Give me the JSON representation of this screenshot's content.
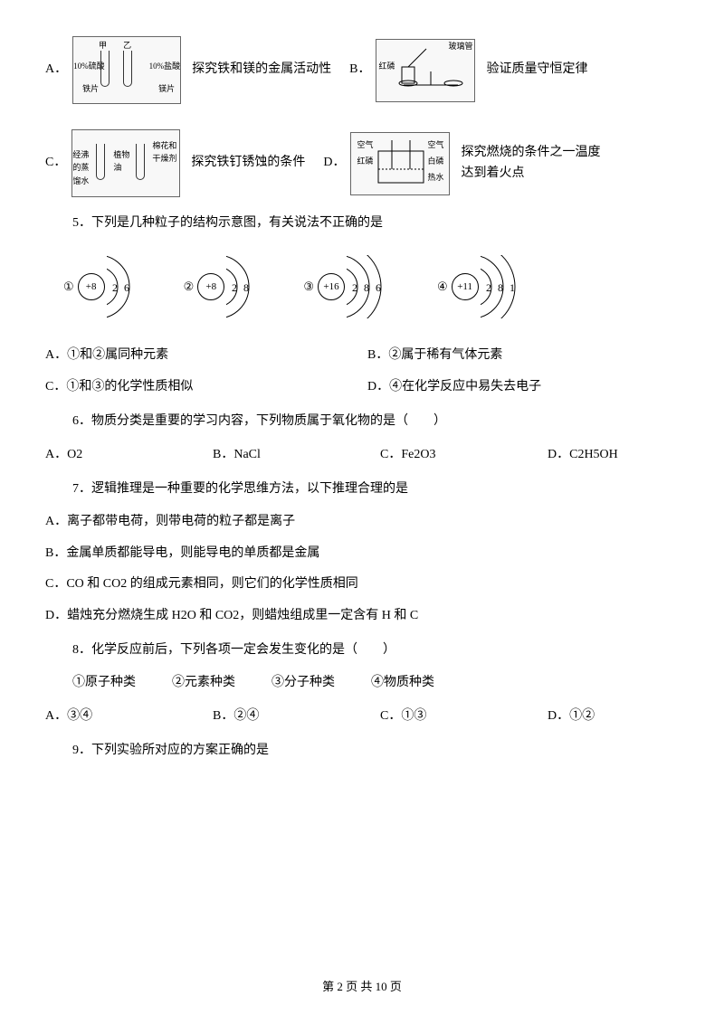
{
  "q_options_top": {
    "A": {
      "diagram_labels": [
        "甲",
        "乙",
        "10%硫酸",
        "铁片",
        "10%盐酸",
        "镁片"
      ],
      "text": "探究铁和镁的金属活动性"
    },
    "B": {
      "diagram_labels": [
        "玻璃管",
        "红磷"
      ],
      "text": "验证质量守恒定律"
    },
    "C": {
      "diagram_labels": [
        "经沸的蒸馏水",
        "植物油",
        "棉花和干燥剂"
      ],
      "text": "探究铁钉锈蚀的条件"
    },
    "D": {
      "diagram_labels": [
        "空气",
        "空气",
        "红磷",
        "白磷",
        "热水"
      ],
      "text": "探究燃烧的条件之一温度达到着火点"
    }
  },
  "q5": {
    "stem": "5．下列是几种粒子的结构示意图，有关说法不正确的是",
    "atoms": [
      {
        "num": "①",
        "nucleus": "+8",
        "shells": [
          "2",
          "6"
        ]
      },
      {
        "num": "②",
        "nucleus": "+8",
        "shells": [
          "2",
          "8"
        ]
      },
      {
        "num": "③",
        "nucleus": "+16",
        "shells": [
          "2",
          "8",
          "6"
        ]
      },
      {
        "num": "④",
        "nucleus": "+11",
        "shells": [
          "2",
          "8",
          "1"
        ]
      }
    ],
    "opts": {
      "A": "A．①和②属同种元素",
      "B": "B．②属于稀有气体元素",
      "C": "C．①和③的化学性质相似",
      "D": "D．④在化学反应中易失去电子"
    }
  },
  "q6": {
    "stem": "6．物质分类是重要的学习内容，下列物质属于氧化物的是（　　）",
    "opts": {
      "A": "A．O2",
      "B": "B．NaCl",
      "C": "C．Fe2O3",
      "D": "D．C2H5OH"
    }
  },
  "q7": {
    "stem": "7．逻辑推理是一种重要的化学思维方法，以下推理合理的是",
    "opts": {
      "A": "A．离子都带电荷，则带电荷的粒子都是离子",
      "B": "B．金属单质都能导电，则能导电的单质都是金属",
      "C": "C．CO 和 CO2 的组成元素相同，则它们的化学性质相同",
      "D": "D．蜡烛充分燃烧生成 H2O 和 CO2，则蜡烛组成里一定含有 H 和 C"
    }
  },
  "q8": {
    "stem": "8．化学反应前后，下列各项一定会发生变化的是（　　）",
    "items": {
      "i1": "①原子种类",
      "i2": "②元素种类",
      "i3": "③分子种类",
      "i4": "④物质种类"
    },
    "opts": {
      "A": "A．③④",
      "B": "B．②④",
      "C": "C．①③",
      "D": "D．①②"
    }
  },
  "q9": {
    "stem": "9．下列实验所对应的方案正确的是"
  },
  "footer": {
    "text": "第 2 页 共 10 页"
  }
}
